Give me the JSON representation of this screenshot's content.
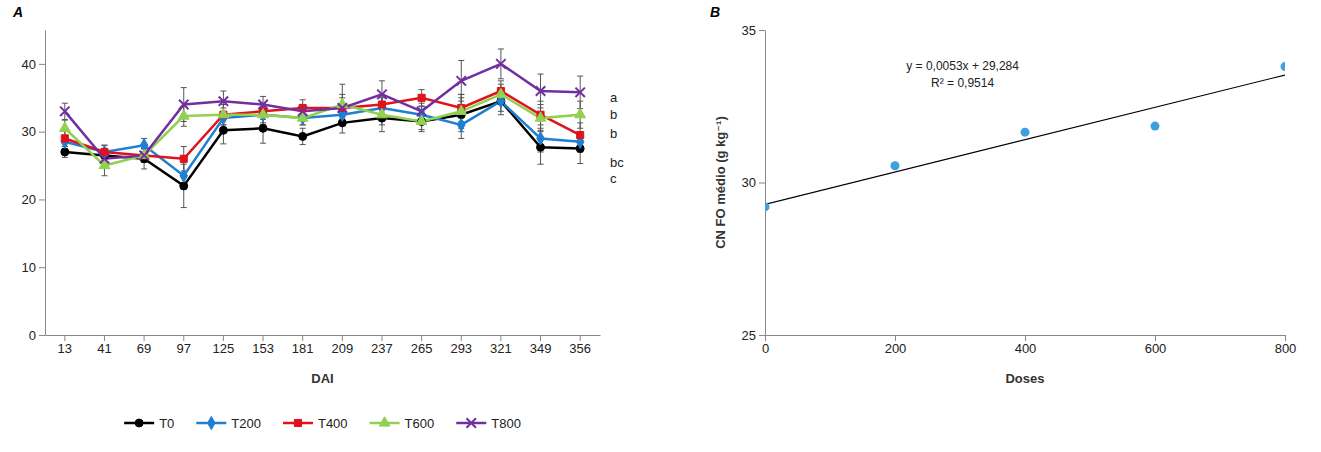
{
  "chart_data": [
    {
      "type": "line",
      "panel": "A",
      "x_label": "DAI",
      "categories": [
        "13",
        "41",
        "69",
        "97",
        "125",
        "153",
        "181",
        "209",
        "237",
        "265",
        "293",
        "321",
        "349",
        "356"
      ],
      "ylim": [
        0,
        45
      ],
      "yticks": [
        0,
        10,
        20,
        30,
        40
      ],
      "legend": "bottom",
      "series": [
        {
          "name": "T0",
          "color": "#000000",
          "marker": "circle",
          "values": [
            27,
            26.5,
            26,
            22,
            30.2,
            30.5,
            29.3,
            31.3,
            32,
            31.5,
            32.5,
            34.5,
            27.7,
            27.5
          ],
          "errors": [
            0.8,
            1,
            1.5,
            3.2,
            2,
            2.2,
            1.2,
            1.5,
            2,
            1.5,
            2.5,
            2,
            2.5,
            2.2
          ]
        },
        {
          "name": "T200",
          "color": "#1f7fd1",
          "marker": "diamond",
          "values": [
            28.5,
            27,
            28,
            23.5,
            32,
            32.5,
            32,
            32.5,
            33.5,
            32.5,
            31,
            34.5,
            29,
            28.5
          ],
          "errors": [
            1,
            1,
            1,
            2,
            1.5,
            1.5,
            1,
            1.5,
            1.5,
            1.2,
            2,
            1.5,
            2,
            1.5
          ]
        },
        {
          "name": "T400",
          "color": "#e0121b",
          "marker": "square",
          "values": [
            29,
            27,
            26.5,
            26,
            32.5,
            33,
            33.5,
            33.5,
            34,
            35,
            33.5,
            36,
            32.5,
            29.5
          ],
          "errors": [
            1.2,
            1,
            1,
            1.8,
            1.5,
            1.2,
            1.2,
            1.5,
            1.5,
            1.2,
            2,
            1.5,
            2,
            1.8
          ]
        },
        {
          "name": "T600",
          "color": "#92d050",
          "marker": "triangle",
          "values": [
            30.5,
            25,
            26.5,
            32.3,
            32.5,
            32.5,
            32,
            34,
            32.5,
            31.5,
            33,
            35.5,
            32,
            32.5
          ],
          "errors": [
            1.2,
            1.5,
            1,
            1.5,
            1.5,
            1.2,
            1,
            3,
            1.5,
            1.2,
            2.5,
            1.5,
            2,
            2
          ]
        },
        {
          "name": "T800",
          "color": "#7030a0",
          "marker": "x",
          "values": [
            33,
            26,
            26.5,
            34,
            34.5,
            34,
            33,
            33.5,
            35.5,
            33,
            37.5,
            40,
            36,
            35.8
          ],
          "errors": [
            1.2,
            1,
            1,
            2.5,
            1.5,
            1.2,
            1,
            2,
            2,
            1.2,
            3,
            2.2,
            2.5,
            2.4
          ]
        }
      ],
      "annotations": [
        {
          "text": "a",
          "y": 35.1
        },
        {
          "text": "b",
          "y": 32.5
        },
        {
          "text": "b",
          "y": 29.7
        },
        {
          "text": "bc",
          "y": 25.5
        },
        {
          "text": "c",
          "y": 23.1
        }
      ]
    },
    {
      "type": "scatter",
      "panel": "B",
      "x_label": "Doses",
      "y_label": "CN FO médio (g kg⁻¹)",
      "x": [
        0,
        200,
        400,
        600,
        800
      ],
      "values": [
        29.2,
        30.55,
        31.65,
        31.85,
        33.8
      ],
      "color": "#3f9fdf",
      "xlim": [
        0,
        800
      ],
      "xticks": [
        0,
        200,
        400,
        600,
        800
      ],
      "ylim": [
        25,
        35
      ],
      "yticks": [
        25,
        30,
        35
      ],
      "trendline": {
        "slope": 0.0053,
        "intercept": 29.284
      },
      "equation": "y = 0,0053x + 29,284",
      "r_squared": "R² = 0,9514"
    }
  ]
}
